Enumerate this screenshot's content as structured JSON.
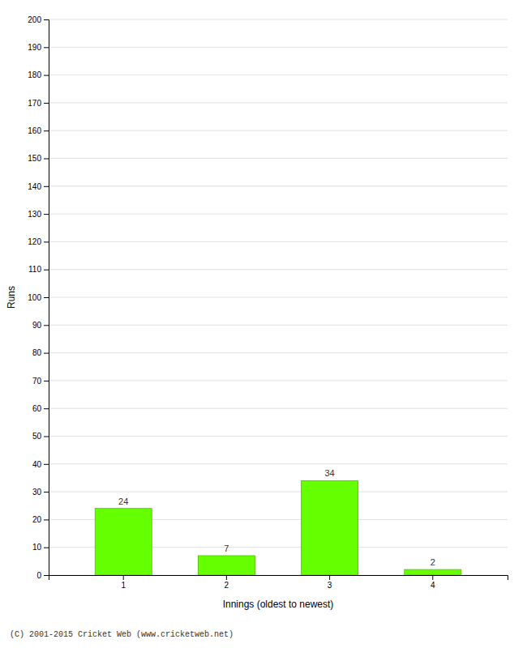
{
  "chart_data": {
    "type": "bar",
    "categories": [
      "1",
      "2",
      "3",
      "4"
    ],
    "values": [
      24,
      7,
      34,
      2
    ],
    "color": "#66ff00",
    "xlabel": "Innings (oldest to newest)",
    "ylabel": "Runs",
    "ylim": [
      0,
      200
    ],
    "yticks": [
      0,
      10,
      20,
      30,
      40,
      50,
      60,
      70,
      80,
      90,
      100,
      110,
      120,
      130,
      140,
      150,
      160,
      170,
      180,
      190,
      200
    ],
    "grid": true,
    "data_labels": true,
    "annotations": [
      "(C) 2001-2015 Cricket Web (www.cricketweb.net)"
    ]
  }
}
